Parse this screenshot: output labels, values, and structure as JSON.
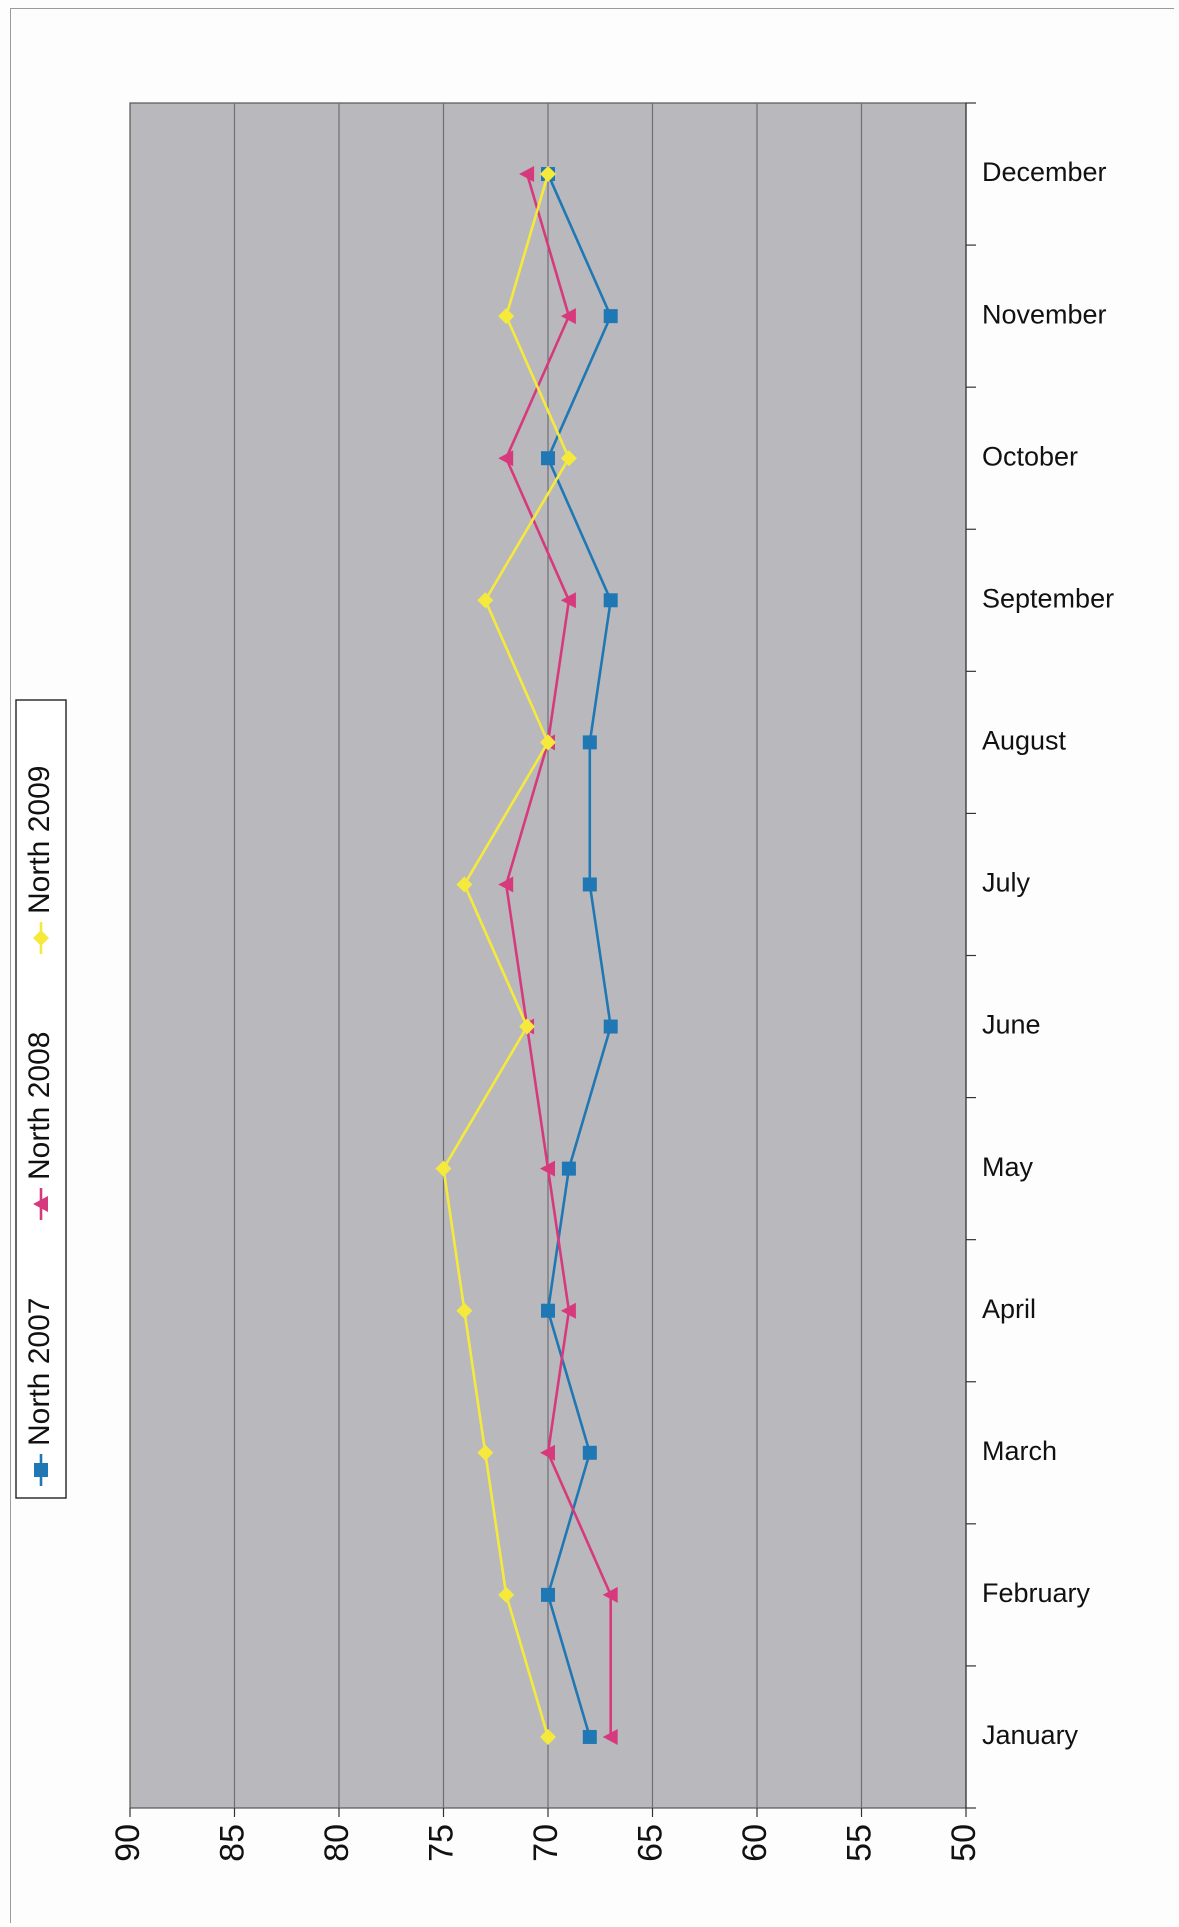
{
  "chart_data": {
    "type": "line",
    "orientation": "rotated-90",
    "title": "",
    "xlabel": "",
    "ylabel": "",
    "categories": [
      "January",
      "February",
      "March",
      "April",
      "May",
      "June",
      "July",
      "August",
      "September",
      "October",
      "November",
      "December"
    ],
    "value_axis": {
      "min": 50,
      "max": 90,
      "ticks": [
        90,
        85,
        80,
        75,
        70,
        65,
        60,
        55,
        50
      ],
      "reversed": true
    },
    "grid": true,
    "plot_background": "#b9b9bd",
    "legend_position": "left",
    "series": [
      {
        "name": "North 2007",
        "color": "#1f78b4",
        "marker": "square",
        "values": [
          68,
          70,
          68,
          70,
          69,
          67,
          68,
          68,
          67,
          70,
          67,
          70
        ]
      },
      {
        "name": "North 2008",
        "color": "#d63a7c",
        "marker": "triangle",
        "values": [
          67,
          67,
          70,
          69,
          70,
          71,
          72,
          70,
          69,
          72,
          69,
          71
        ]
      },
      {
        "name": "North 2009",
        "color": "#f5ea3c",
        "marker": "diamond",
        "values": [
          70,
          72,
          73,
          74,
          75,
          71,
          74,
          70,
          73,
          69,
          72,
          70
        ]
      }
    ]
  }
}
